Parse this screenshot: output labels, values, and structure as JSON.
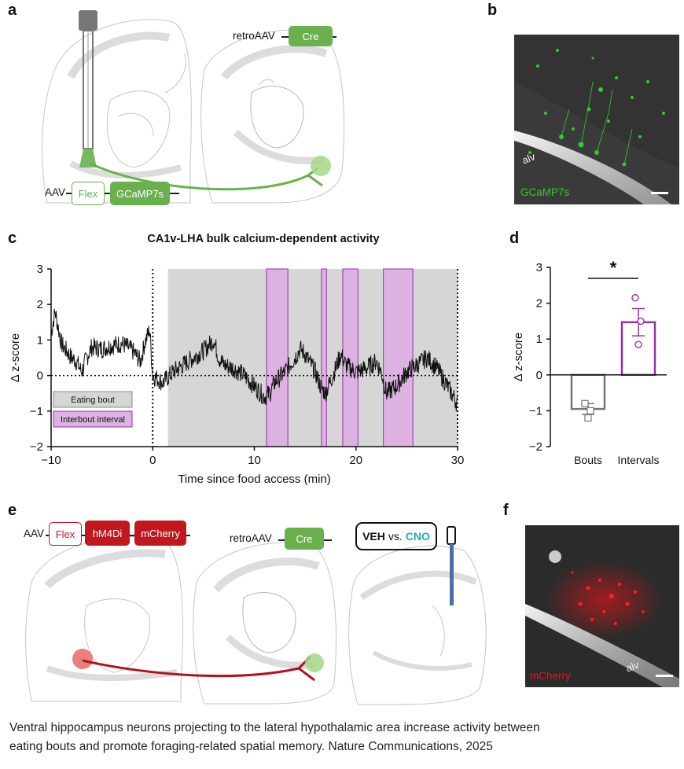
{
  "panels": {
    "a": {
      "letter": "a",
      "aav_label": "AAV",
      "flex_label": "Flex",
      "gcamp_label": "GCaMP7s",
      "retro_label": "retroAAV",
      "cre_label": "Cre"
    },
    "b": {
      "letter": "b",
      "alv_label": "alv",
      "stain_label": "GCaMP7s"
    },
    "c": {
      "letter": "c",
      "title": "CA1v-LHA bulk calcium-dependent activity",
      "legend": [
        "Eating bout",
        "Interbout interval"
      ]
    },
    "d": {
      "letter": "d",
      "significance": "*"
    },
    "e": {
      "letter": "e",
      "aav_label": "AAV",
      "flex_label": "Flex",
      "hm4di_label": "hM4Di",
      "mcherry_label": "mCherry",
      "retro_label": "retroAAV",
      "cre_label": "Cre",
      "veh_label": "VEH",
      "vs_label": "vs.",
      "cno_label": "CNO"
    },
    "f": {
      "letter": "f",
      "stain_label": "mCherry",
      "alv_label": "alv"
    }
  },
  "caption": {
    "line1": "Ventral hippocampus neurons projecting to the lateral hypothalamic area increase activity between",
    "line2": "eating bouts and promote foraging-related spatial memory. Nature Communications, 2025"
  },
  "colors": {
    "green": "#6ab04c",
    "red": "#c0181e",
    "purple": "#9b2fae",
    "interval_fill": "#dcb2e0",
    "bout_fill": "#d6d6d6"
  },
  "chart_data": [
    {
      "id": "panel-c",
      "type": "line",
      "title": "CA1v-LHA bulk calcium-dependent activity",
      "xlabel": "Time since food access (min)",
      "ylabel": "Δ z-score",
      "xlim": [
        -10,
        30
      ],
      "ylim": [
        -2,
        3
      ],
      "xticks": [
        -10,
        0,
        10,
        20,
        30
      ],
      "yticks": [
        -2,
        -1,
        0,
        1,
        2,
        3
      ],
      "eating_bout": [
        1.5,
        30
      ],
      "interbout_intervals": [
        [
          11.2,
          13.3
        ],
        [
          16.6,
          17.1
        ],
        [
          18.7,
          20.2
        ],
        [
          22.7,
          25.6
        ]
      ],
      "trace_anchors": {
        "t": [
          -10,
          -9.6,
          -9,
          -8.5,
          -8,
          -7.5,
          -7,
          -6.5,
          -6,
          -5,
          -4,
          -3,
          -2,
          -1.2,
          -0.8,
          -0.3,
          0,
          0.5,
          1,
          2,
          3,
          4,
          5,
          6,
          6.5,
          7,
          8,
          9,
          10,
          11,
          11.5,
          12,
          13,
          14,
          14.5,
          15,
          16,
          16.5,
          17,
          18,
          18.5,
          19,
          20,
          21,
          22,
          22.5,
          23,
          24,
          25,
          26,
          27,
          28,
          29,
          30
        ],
        "z": [
          1.2,
          1.8,
          0.9,
          0.7,
          0.5,
          0.4,
          0.1,
          0.5,
          0.8,
          0.75,
          0.85,
          0.9,
          0.7,
          0.4,
          0.9,
          1.3,
          0.0,
          -0.1,
          -0.2,
          0.1,
          0.3,
          0.5,
          0.7,
          1.0,
          0.5,
          0.3,
          0.2,
          0.0,
          -0.3,
          -0.6,
          -0.5,
          -0.2,
          0.1,
          0.5,
          0.75,
          0.6,
          0.1,
          -0.3,
          -0.5,
          0.2,
          0.6,
          0.3,
          0.1,
          0.2,
          0.4,
          0.1,
          -0.5,
          -0.3,
          0.1,
          0.3,
          0.5,
          0.2,
          -0.3,
          -0.8
        ]
      }
    },
    {
      "id": "panel-d",
      "type": "bar",
      "ylabel": "Δ z-score",
      "ylim": [
        -2,
        3
      ],
      "yticks": [
        -2,
        -1,
        0,
        1,
        2,
        3
      ],
      "categories": [
        "Bouts",
        "Intervals"
      ],
      "values": [
        -0.95,
        1.47
      ],
      "sem": [
        0.15,
        0.38
      ],
      "points": [
        [
          -0.8,
          -1.0,
          -1.2
        ],
        [
          2.15,
          1.5,
          0.85
        ]
      ],
      "significance": "*"
    }
  ]
}
